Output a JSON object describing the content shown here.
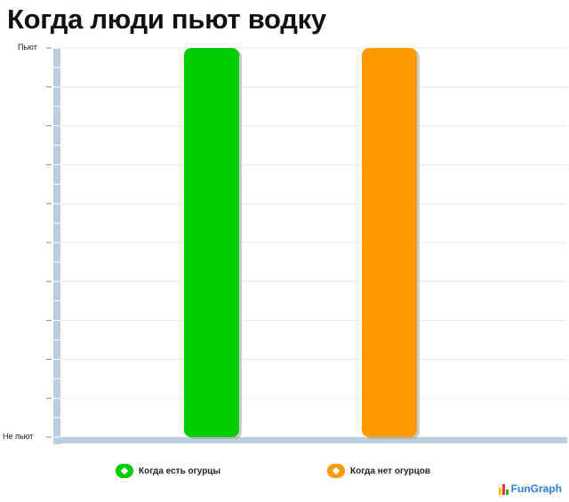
{
  "chart_data": {
    "type": "bar",
    "title": "Когда люди пьют водку",
    "categories": [
      "Когда есть огурцы",
      "Когда нет огурцов"
    ],
    "values": [
      1,
      1
    ],
    "ylim": [
      0,
      1
    ],
    "yticks": [
      {
        "value": 1,
        "label": "Пьют"
      },
      {
        "value": 0,
        "label": "Не пьют"
      }
    ],
    "colors": [
      "#00cc00",
      "#ff9900"
    ],
    "grid": true,
    "legend": "bottom"
  },
  "legend": [
    {
      "label": "Когда есть огурцы",
      "color": "#00cc00"
    },
    {
      "label": "Когда нет огурцов",
      "color": "#ff9900"
    }
  ],
  "logo_text": "FunGraph"
}
